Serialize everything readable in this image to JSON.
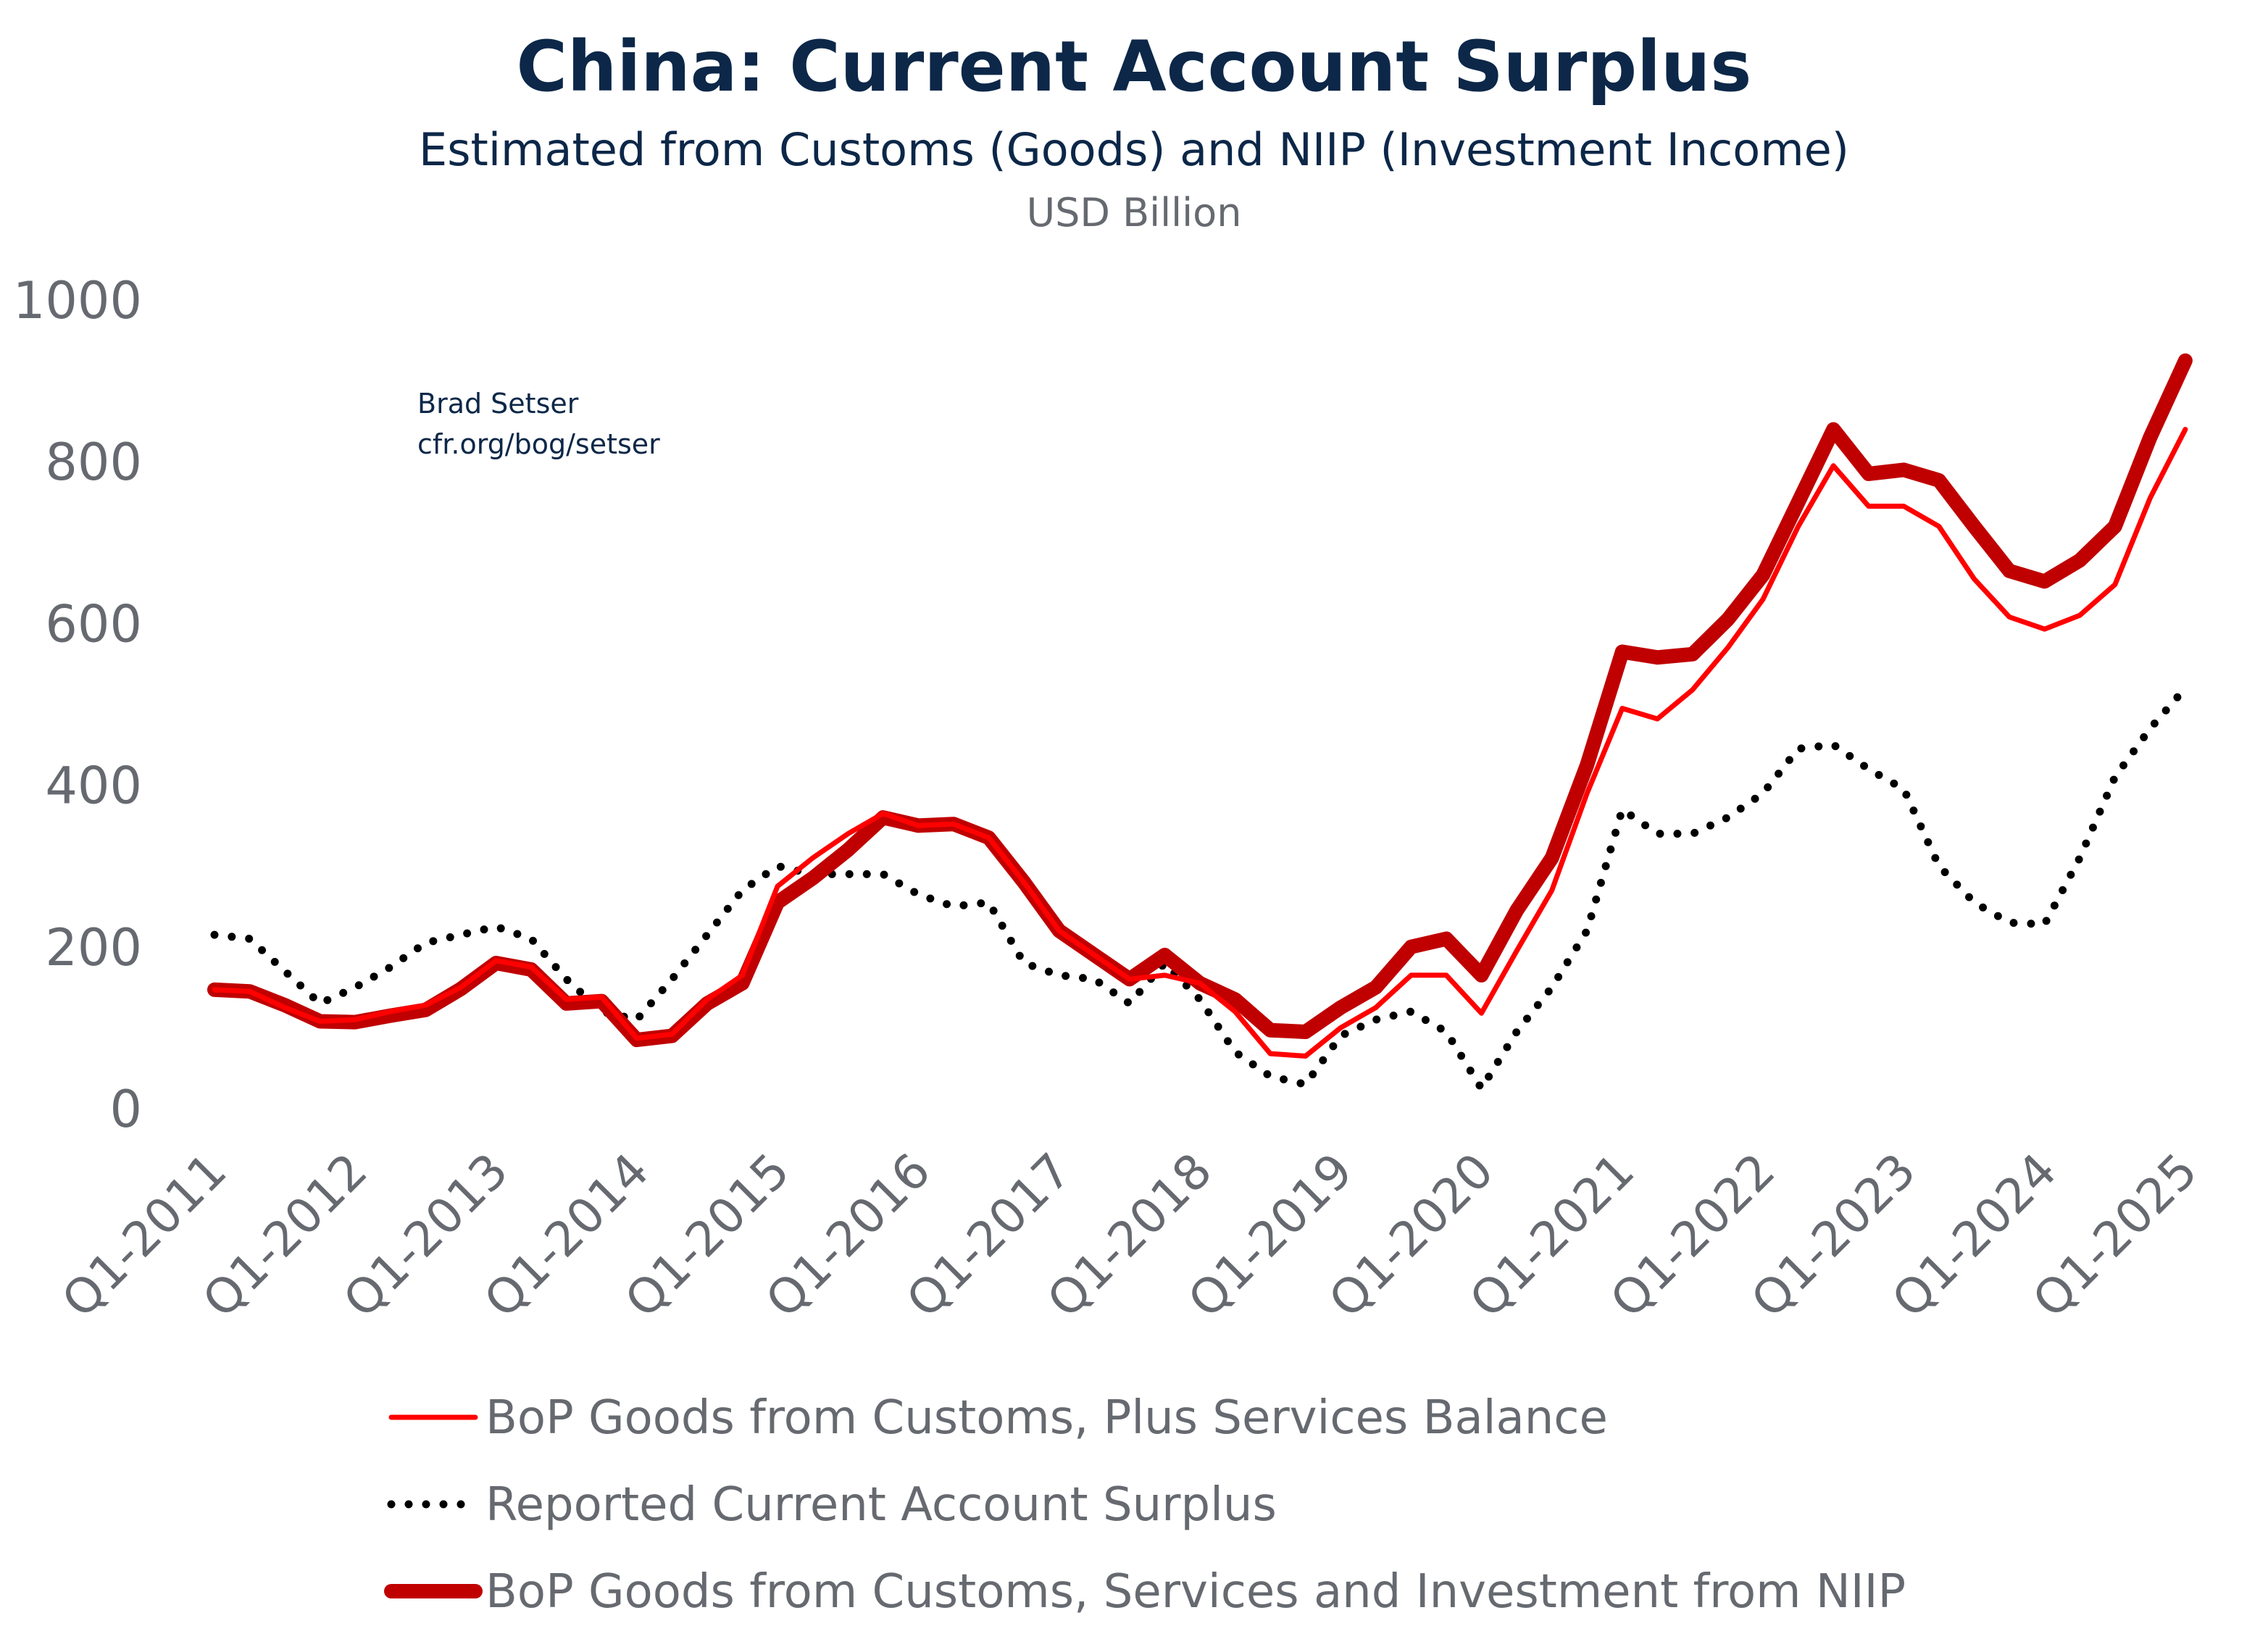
{
  "chart_data": {
    "type": "line",
    "title": "China: Current Account Surplus",
    "subtitle": "Estimated from Customs (Goods) and NIIP (Investment Income)",
    "ylabel": "USD Billion",
    "annotation": [
      "Brad Setser",
      "cfr.org/bog/setser"
    ],
    "ylim": [
      0,
      1000
    ],
    "yticks": [
      0,
      200,
      400,
      600,
      800,
      1000
    ],
    "xtick_labels": [
      "Q1-2011",
      "Q1-2012",
      "Q1-2013",
      "Q1-2014",
      "Q1-2015",
      "Q1-2016",
      "Q1-2017",
      "Q1-2018",
      "Q1-2019",
      "Q1-2020",
      "Q1-2021",
      "Q1-2022",
      "Q1-2023",
      "Q1-2024",
      "Q1-2025"
    ],
    "x_start": "Q1-2011",
    "x_end": "Q1-2025",
    "grid": false,
    "legend_position": "bottom",
    "series": [
      {
        "name": "BoP Goods from Customs, Plus Services Balance",
        "color": "#ff0000",
        "style": "solid-thin",
        "values": [
          147,
          145,
          125,
          108,
          110,
          120,
          128,
          150,
          183,
          175,
          135,
          138,
          87,
          92,
          135,
          165,
          275,
          310,
          340,
          365,
          350,
          352,
          335,
          280,
          220,
          190,
          160,
          165,
          155,
          120,
          68,
          65,
          100,
          125,
          165,
          165,
          118,
          195,
          270,
          390,
          495,
          482,
          518,
          570,
          630,
          720,
          795,
          745,
          745,
          720,
          655,
          608,
          593,
          610,
          648,
          755,
          840
        ]
      },
      {
        "name": "Reported Current Account Surplus",
        "color": "#000000",
        "style": "dotted",
        "values": [
          215,
          210,
          170,
          130,
          150,
          175,
          205,
          215,
          225,
          210,
          160,
          120,
          110,
          160,
          215,
          270,
          300,
          290,
          290,
          290,
          265,
          250,
          255,
          180,
          165,
          160,
          130,
          180,
          135,
          70,
          40,
          30,
          90,
          110,
          120,
          95,
          25,
          95,
          150,
          220,
          370,
          340,
          340,
          360,
          390,
          445,
          450,
          420,
          395,
          300,
          255,
          230,
          228,
          310,
          410,
          470,
          520
        ]
      },
      {
        "name": "BoP Goods from Customs, Services and Investment from NIIP",
        "color": "#c00000",
        "style": "solid-thick",
        "values": [
          147,
          145,
          128,
          108,
          107,
          115,
          122,
          148,
          180,
          172,
          130,
          133,
          85,
          90,
          130,
          155,
          255,
          285,
          320,
          360,
          350,
          352,
          335,
          280,
          220,
          190,
          160,
          190,
          155,
          135,
          97,
          95,
          125,
          150,
          200,
          210,
          165,
          245,
          310,
          425,
          565,
          558,
          562,
          605,
          660,
          750,
          840,
          785,
          790,
          777,
          720,
          665,
          652,
          678,
          720,
          830,
          925
        ]
      }
    ]
  }
}
